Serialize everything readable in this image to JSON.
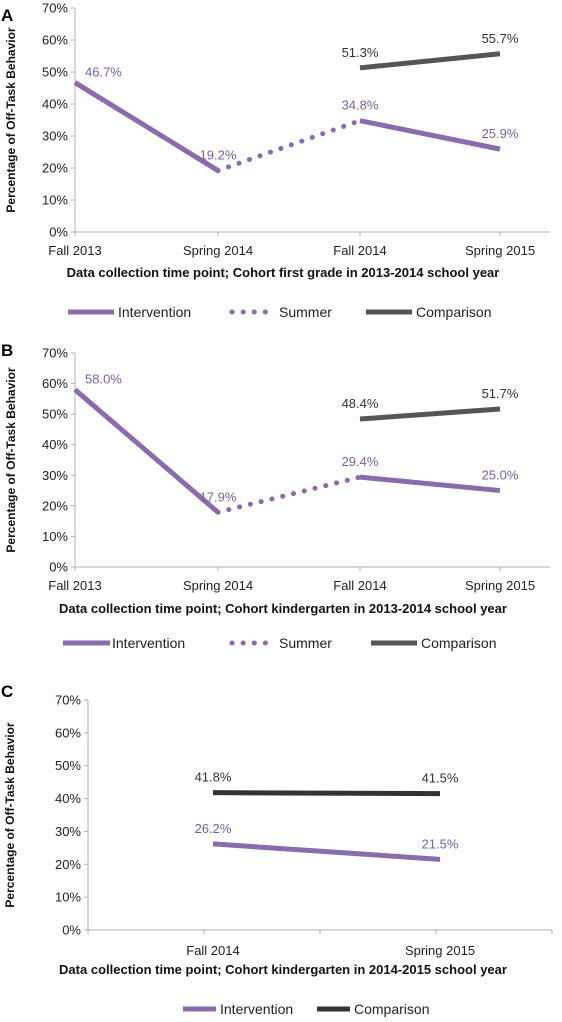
{
  "colors": {
    "intervention": "#8a6bab",
    "comparison": "#555555",
    "axis": "#b0b0b0",
    "text": "#222222"
  },
  "chart_data": [
    {
      "panel": "A",
      "type": "line",
      "categories": [
        "Fall 2013",
        "Spring 2014",
        "Fall 2014",
        "Spring 2015"
      ],
      "ylabel": "Percentage of Off-Task Behavior",
      "xlabel": "Data collection time point; Cohort first grade in 2013-2014 school year",
      "ylim": [
        0,
        70
      ],
      "yticks": [
        "0%",
        "10%",
        "20%",
        "30%",
        "40%",
        "50%",
        "60%",
        "70%"
      ],
      "grid": false,
      "legend_position": "bottom",
      "series": [
        {
          "name": "Intervention",
          "style": "solid",
          "color": "#8a6bab",
          "points": [
            {
              "cat": 0,
              "value": 46.7,
              "label": "46.7%"
            },
            {
              "cat": 1,
              "value": 19.2,
              "label": "19.2%"
            }
          ]
        },
        {
          "name": "",
          "style": "solid",
          "color": "#8a6bab",
          "points": [
            {
              "cat": 2,
              "value": 34.8,
              "label": "34.8%"
            },
            {
              "cat": 3,
              "value": 25.9,
              "label": "25.9%"
            }
          ]
        },
        {
          "name": "Summer",
          "style": "dotted",
          "color": "#8a6bab",
          "points": [
            {
              "cat": 1,
              "value": 19.2
            },
            {
              "cat": 2,
              "value": 34.8
            }
          ]
        },
        {
          "name": "Comparison",
          "style": "solid",
          "color": "#555555",
          "points": [
            {
              "cat": 2,
              "value": 51.3,
              "label": "51.3%"
            },
            {
              "cat": 3,
              "value": 55.7,
              "label": "55.7%"
            }
          ]
        }
      ],
      "legend": [
        {
          "name": "Intervention",
          "style": "solid",
          "color": "#8a6bab"
        },
        {
          "name": "Summer",
          "style": "dotted",
          "color": "#8a6bab"
        },
        {
          "name": "Comparison",
          "style": "solid",
          "color": "#555555"
        }
      ]
    },
    {
      "panel": "B",
      "type": "line",
      "categories": [
        "Fall 2013",
        "Spring 2014",
        "Fall 2014",
        "Spring 2015"
      ],
      "ylabel": "Percentage of Off-Task Behavior",
      "xlabel": "Data collection time point; Cohort kindergarten in 2013-2014 school year",
      "ylim": [
        0,
        70
      ],
      "yticks": [
        "0%",
        "10%",
        "20%",
        "30%",
        "40%",
        "50%",
        "60%",
        "70%"
      ],
      "grid": false,
      "legend_position": "bottom",
      "series": [
        {
          "name": "Intervention",
          "style": "solid",
          "color": "#8a6bab",
          "points": [
            {
              "cat": 0,
              "value": 58.0,
              "label": "58.0%"
            },
            {
              "cat": 1,
              "value": 17.9,
              "label": "17.9%"
            }
          ]
        },
        {
          "name": "",
          "style": "solid",
          "color": "#8a6bab",
          "points": [
            {
              "cat": 2,
              "value": 29.4,
              "label": "29.4%"
            },
            {
              "cat": 3,
              "value": 25.0,
              "label": "25.0%"
            }
          ]
        },
        {
          "name": "Summer",
          "style": "dotted",
          "color": "#8a6bab",
          "points": [
            {
              "cat": 1,
              "value": 17.9
            },
            {
              "cat": 2,
              "value": 29.4
            }
          ]
        },
        {
          "name": "Comparison",
          "style": "solid",
          "color": "#555555",
          "points": [
            {
              "cat": 2,
              "value": 48.4,
              "label": "48.4%"
            },
            {
              "cat": 3,
              "value": 51.7,
              "label": "51.7%"
            }
          ]
        }
      ],
      "legend": [
        {
          "name": "Intervention",
          "style": "solid",
          "color": "#8a6bab"
        },
        {
          "name": "Summer",
          "style": "dotted",
          "color": "#8a6bab"
        },
        {
          "name": "Comparison",
          "style": "solid",
          "color": "#555555"
        }
      ]
    },
    {
      "panel": "C",
      "type": "line",
      "categories": [
        "Fall 2014",
        "Spring 2015"
      ],
      "ylabel": "Percentage of Off-Task Behavior",
      "xlabel": "Data collection time point; Cohort kindergarten in 2014-2015 school year",
      "ylim": [
        0,
        70
      ],
      "yticks": [
        "0%",
        "10%",
        "20%",
        "30%",
        "40%",
        "50%",
        "60%",
        "70%"
      ],
      "grid": false,
      "legend_position": "bottom",
      "series": [
        {
          "name": "Intervention",
          "style": "solid",
          "color": "#8a6bab",
          "points": [
            {
              "cat": 0,
              "value": 26.2,
              "label": "26.2%"
            },
            {
              "cat": 1,
              "value": 21.5,
              "label": "21.5%"
            }
          ]
        },
        {
          "name": "Comparison",
          "style": "solid",
          "color": "#333333",
          "points": [
            {
              "cat": 0,
              "value": 41.8,
              "label": "41.8%"
            },
            {
              "cat": 1,
              "value": 41.5,
              "label": "41.5%"
            }
          ]
        }
      ],
      "legend": [
        {
          "name": "Intervention",
          "style": "solid",
          "color": "#8a6bab"
        },
        {
          "name": "Comparison",
          "style": "solid",
          "color": "#333333"
        }
      ]
    }
  ]
}
